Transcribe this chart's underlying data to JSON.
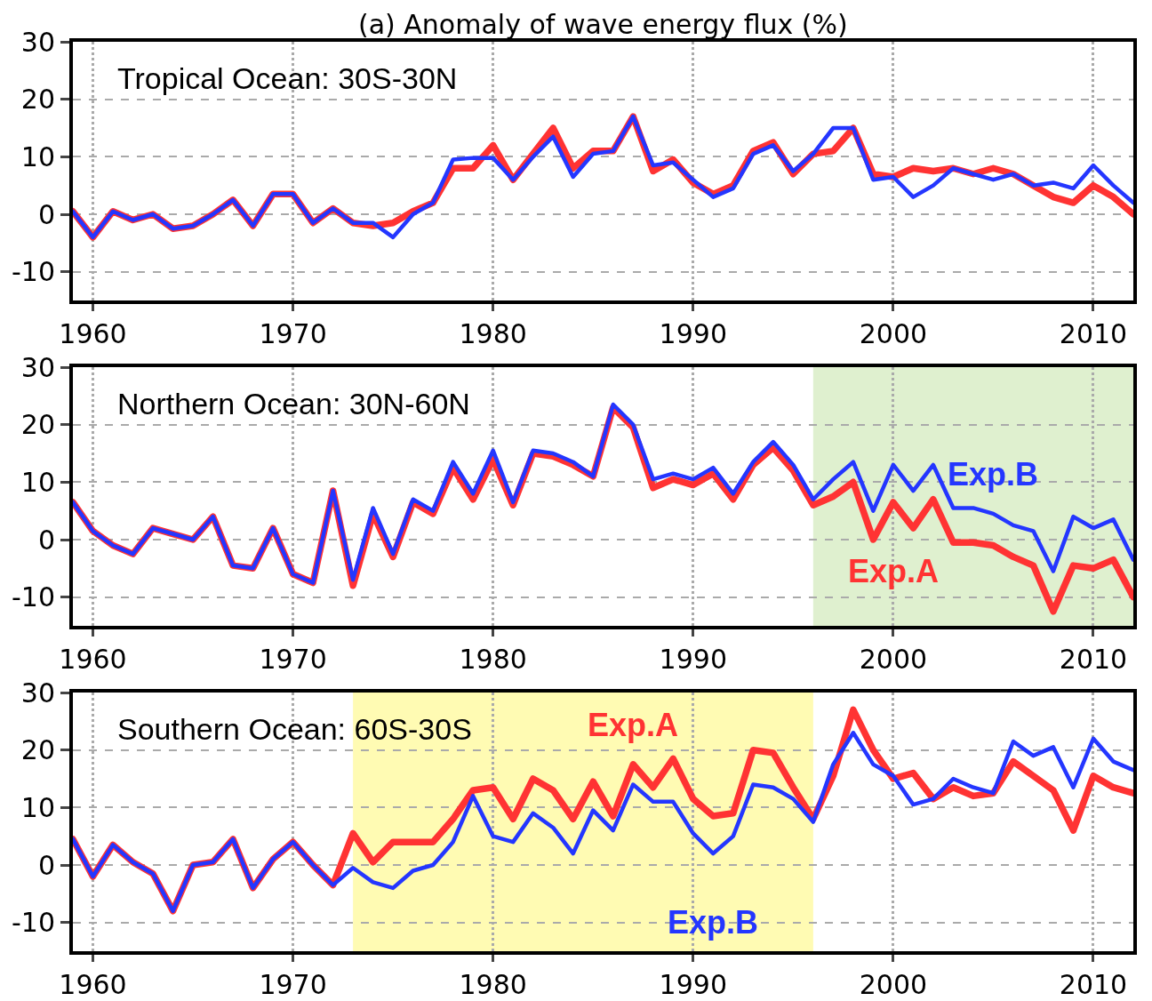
{
  "chart_data": [
    {
      "type": "line",
      "title": "(a) Anomaly of wave energy flux (%)",
      "x": [
        1959,
        1960,
        1961,
        1962,
        1963,
        1964,
        1965,
        1966,
        1967,
        1968,
        1969,
        1970,
        1971,
        1972,
        1973,
        1974,
        1975,
        1976,
        1977,
        1978,
        1979,
        1980,
        1981,
        1982,
        1983,
        1984,
        1985,
        1986,
        1987,
        1988,
        1989,
        1990,
        1991,
        1992,
        1993,
        1994,
        1995,
        1996,
        1997,
        1998,
        1999,
        2000,
        2001,
        2002,
        2003,
        2004,
        2005,
        2006,
        2007,
        2008,
        2009,
        2010,
        2011,
        2012
      ],
      "series": [
        {
          "color": "#ff3333",
          "values": [
            0.5,
            -4,
            0.5,
            -1,
            0,
            -2.5,
            -2,
            0,
            2.5,
            -2,
            3.5,
            3.5,
            -1.5,
            1,
            -1.5,
            -2,
            -1.5,
            0.5,
            2,
            8,
            8,
            12,
            6,
            10.5,
            15,
            8,
            11,
            11,
            17,
            7.5,
            9.5,
            5.5,
            3.5,
            5,
            11,
            12.5,
            7,
            10.5,
            11,
            15,
            7,
            6.5,
            8,
            7.5,
            8,
            7,
            8,
            7,
            5,
            3,
            2,
            5,
            3,
            0
          ]
        },
        {
          "color": "#2436ff",
          "values": [
            0.5,
            -4,
            0.5,
            -1,
            0,
            -2.5,
            -2,
            0,
            2.5,
            -2,
            3.5,
            3.5,
            -1.5,
            1,
            -1.5,
            -1.5,
            -4,
            0,
            2,
            9.5,
            9.8,
            9.8,
            6,
            10,
            13.5,
            6.5,
            10.5,
            11,
            17,
            8.5,
            9,
            6,
            3,
            4.5,
            10.5,
            12,
            7.5,
            10.5,
            15,
            15,
            6,
            6.5,
            3,
            5,
            8,
            7,
            6,
            7,
            5,
            5.5,
            4.5,
            8.5,
            5,
            2
          ]
        }
      ],
      "annotations": [
        "Tropical Ocean: 30S-30N"
      ],
      "xlim": [
        1959,
        2012
      ],
      "xticks": [
        1960,
        1970,
        1980,
        1990,
        2000,
        2010
      ],
      "ylim": [
        -15,
        30
      ],
      "yticks": [
        -10,
        0,
        10,
        20,
        30
      ],
      "grid": true
    },
    {
      "type": "line",
      "x": [
        1959,
        1960,
        1961,
        1962,
        1963,
        1964,
        1965,
        1966,
        1967,
        1968,
        1969,
        1970,
        1971,
        1972,
        1973,
        1974,
        1975,
        1976,
        1977,
        1978,
        1979,
        1980,
        1981,
        1982,
        1983,
        1984,
        1985,
        1986,
        1987,
        1988,
        1989,
        1990,
        1991,
        1992,
        1993,
        1994,
        1995,
        1996,
        1997,
        1998,
        1999,
        2000,
        2001,
        2002,
        2003,
        2004,
        2005,
        2006,
        2007,
        2008,
        2009,
        2010,
        2011,
        2012
      ],
      "series": [
        {
          "color": "#ff3333",
          "values": [
            6.5,
            1.5,
            -1,
            -2.5,
            2,
            1,
            0,
            4,
            -4.5,
            -5,
            2,
            -6,
            -7.5,
            8.5,
            -8,
            4.5,
            -3,
            6.5,
            4.5,
            12.5,
            7,
            14,
            6,
            15,
            14.5,
            13,
            11,
            23,
            19.5,
            9,
            10.5,
            9.5,
            11.5,
            7,
            13,
            16,
            12,
            6,
            7.5,
            10,
            0,
            6.5,
            2,
            7,
            -0.5,
            -0.5,
            -1,
            -3,
            -4.5,
            -12.5,
            -4.5,
            -5,
            -3.5,
            -10
          ]
        },
        {
          "color": "#2436ff",
          "values": [
            6.5,
            1.5,
            -1,
            -2.5,
            2,
            1,
            0,
            4,
            -4.5,
            -5,
            2,
            -6,
            -7.5,
            8.5,
            -7,
            5.5,
            -2.5,
            7,
            5,
            13.5,
            8,
            15.5,
            6.5,
            15.5,
            15,
            13.5,
            11,
            23.5,
            20,
            10.5,
            11.5,
            10.5,
            12.5,
            8,
            13.5,
            17,
            13,
            7,
            10.5,
            13.5,
            5,
            13,
            8.5,
            13,
            5.5,
            5.5,
            4.5,
            2.5,
            1.5,
            -5.5,
            4,
            2,
            3.5,
            -3.5
          ]
        }
      ],
      "annotations": [
        "Northern Ocean: 30N-60N",
        {
          "text": "Exp.A",
          "x": 2000,
          "y": 6.5
        },
        {
          "text": "Exp.B",
          "x": 2005,
          "y": 4.5
        }
      ],
      "bands": [
        {
          "axis": "x",
          "from": 1996,
          "to": 2012,
          "color": "#dff0cf"
        }
      ],
      "xlim": [
        1959,
        2012
      ],
      "xticks": [
        1960,
        1970,
        1980,
        1990,
        2000,
        2010
      ],
      "ylim": [
        -15,
        30
      ],
      "yticks": [
        -10,
        0,
        10,
        20,
        30
      ],
      "grid": true
    },
    {
      "type": "line",
      "x": [
        1959,
        1960,
        1961,
        1962,
        1963,
        1964,
        1965,
        1966,
        1967,
        1968,
        1969,
        1970,
        1971,
        1972,
        1973,
        1974,
        1975,
        1976,
        1977,
        1978,
        1979,
        1980,
        1981,
        1982,
        1983,
        1984,
        1985,
        1986,
        1987,
        1988,
        1989,
        1990,
        1991,
        1992,
        1993,
        1994,
        1995,
        1996,
        1997,
        1998,
        1999,
        2000,
        2001,
        2002,
        2003,
        2004,
        2005,
        2006,
        2007,
        2008,
        2009,
        2010,
        2011,
        2012
      ],
      "series": [
        {
          "color": "#ff3333",
          "values": [
            4.5,
            -2,
            3.5,
            0.5,
            -1.5,
            -8,
            0,
            0.5,
            4.5,
            -4,
            1,
            4,
            0,
            -3.5,
            5.5,
            0.5,
            4,
            4,
            4,
            8,
            13,
            13.5,
            8,
            15,
            13,
            8,
            14.5,
            8.5,
            17.5,
            13.5,
            18.5,
            11.5,
            8.5,
            9,
            20,
            19.5,
            13.5,
            8,
            15.5,
            27,
            20,
            15,
            16,
            11.5,
            13.5,
            12,
            12.5,
            18,
            15.5,
            13,
            6,
            15.5,
            13.5,
            12.5
          ]
        },
        {
          "color": "#2436ff",
          "values": [
            4.5,
            -2,
            3.5,
            0.5,
            -1.5,
            -8,
            0,
            0.5,
            4.5,
            -4,
            1,
            4,
            0,
            -3.5,
            -0.5,
            -3,
            -4,
            -1,
            0,
            4,
            12,
            5,
            4,
            9,
            6.5,
            2,
            9.5,
            6,
            14,
            11,
            11,
            5.5,
            2,
            5,
            14,
            13.5,
            11.5,
            7.5,
            17.5,
            23,
            17.5,
            15.5,
            10.5,
            11.5,
            15,
            13.5,
            12.5,
            21.5,
            19,
            20.5,
            13.5,
            22,
            18,
            16.5
          ]
        }
      ],
      "annotations": [
        "Southern Ocean: 60S-30S",
        {
          "text": "Exp.A",
          "x": 1987,
          "y": 17.5
        },
        {
          "text": "Exp.B",
          "x": 1991,
          "y": 2
        }
      ],
      "bands": [
        {
          "axis": "x",
          "from": 1973,
          "to": 1996,
          "color": "#fffbb3"
        }
      ],
      "xlim": [
        1959,
        2012
      ],
      "xticks": [
        1960,
        1970,
        1980,
        1990,
        2000,
        2010
      ],
      "ylim": [
        -15,
        30
      ],
      "yticks": [
        -10,
        0,
        10,
        20,
        30
      ],
      "grid": true
    }
  ]
}
